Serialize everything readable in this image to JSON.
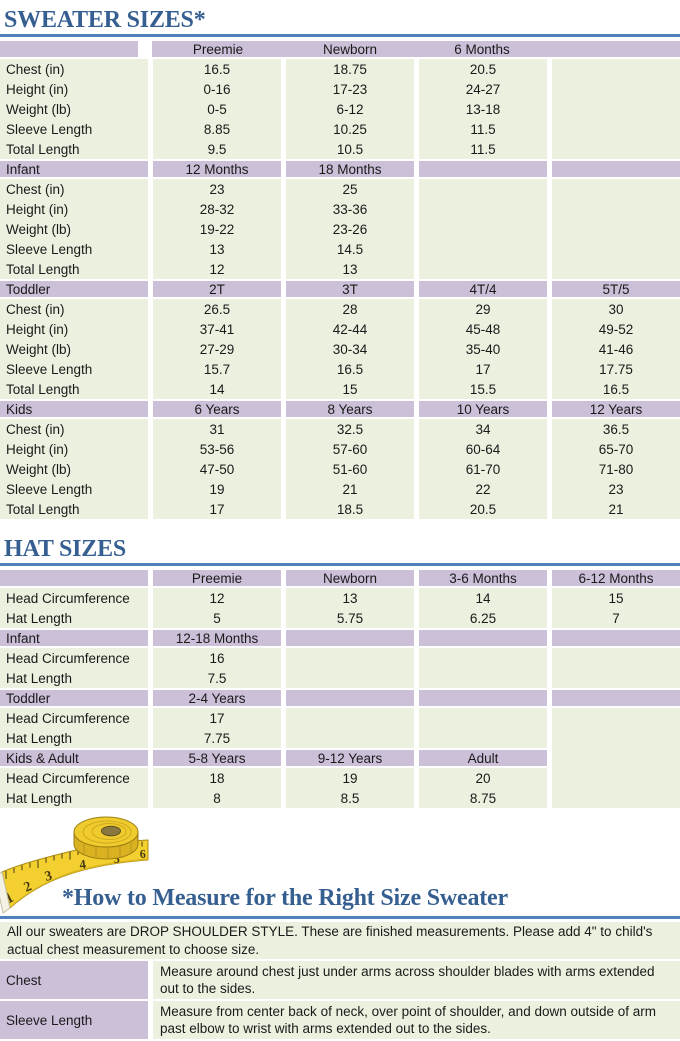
{
  "headings": {
    "sweater": "SWEATER SIZES*",
    "hat": "HAT SIZES",
    "measure": "*How to Measure for the Right Size Sweater"
  },
  "colors": {
    "heading_blue": "#355F91",
    "rule_blue": "#4F81BD",
    "header_purple": "#CCC0D9",
    "body_green": "#EBF1DE"
  },
  "sweater_table": {
    "first_header_solid": true,
    "sections": [
      {
        "header": [
          "",
          "Preemie",
          "Newborn",
          "6 Months",
          ""
        ],
        "rows": [
          [
            "Chest (in)",
            "16.5",
            "18.75",
            "20.5",
            ""
          ],
          [
            "Height (in)",
            "0-16",
            "17-23",
            "24-27",
            ""
          ],
          [
            "Weight (lb)",
            "0-5",
            "6-12",
            "13-18",
            ""
          ],
          [
            "Sleeve Length",
            "8.85",
            "10.25",
            "11.5",
            ""
          ],
          [
            "Total Length",
            "9.5",
            "10.5",
            "11.5",
            ""
          ]
        ]
      },
      {
        "header": [
          "Infant",
          "12 Months",
          "18 Months",
          "",
          ""
        ],
        "rows": [
          [
            "Chest (in)",
            "23",
            "25",
            "",
            ""
          ],
          [
            "Height (in)",
            "28-32",
            "33-36",
            "",
            ""
          ],
          [
            "Weight (lb)",
            "19-22",
            "23-26",
            "",
            ""
          ],
          [
            "Sleeve Length",
            "13",
            "14.5",
            "",
            ""
          ],
          [
            "Total Length",
            "12",
            "13",
            "",
            ""
          ]
        ]
      },
      {
        "header": [
          "Toddler",
          "2T",
          "3T",
          "4T/4",
          "5T/5"
        ],
        "rows": [
          [
            "Chest (in)",
            "26.5",
            "28",
            "29",
            "30"
          ],
          [
            "Height (in)",
            "37-41",
            "42-44",
            "45-48",
            "49-52"
          ],
          [
            "Weight (lb)",
            "27-29",
            "30-34",
            "35-40",
            "41-46"
          ],
          [
            "Sleeve Length",
            "15.7",
            "16.5",
            "17",
            "17.75"
          ],
          [
            "Total Length",
            "14",
            "15",
            "15.5",
            "16.5"
          ]
        ]
      },
      {
        "header": [
          "Kids",
          "6 Years",
          "8 Years",
          "10 Years",
          "12 Years"
        ],
        "rows": [
          [
            "Chest (in)",
            "31",
            "32.5",
            "34",
            "36.5"
          ],
          [
            "Height (in)",
            "53-56",
            "57-60",
            "60-64",
            "65-70"
          ],
          [
            "Weight (lb)",
            "47-50",
            "51-60",
            "61-70",
            "71-80"
          ],
          [
            "Sleeve Length",
            "19",
            "21",
            "22",
            "23"
          ],
          [
            "Total Length",
            "17",
            "18.5",
            "20.5",
            "21"
          ]
        ]
      }
    ]
  },
  "hat_table": {
    "first_header_solid": false,
    "sections": [
      {
        "header": [
          "",
          "Preemie",
          "Newborn",
          "3-6 Months",
          "6-12 Months"
        ],
        "rows": [
          [
            "Head Circumference",
            "12",
            "13",
            "14",
            "15"
          ],
          [
            "Hat Length",
            "5",
            "5.75",
            "6.25",
            "7"
          ]
        ]
      },
      {
        "header": [
          "Infant",
          "12-18 Months",
          "",
          "",
          ""
        ],
        "rows": [
          [
            "Head Circumference",
            "16",
            "",
            "",
            ""
          ],
          [
            "Hat Length",
            "7.5",
            "",
            "",
            ""
          ]
        ]
      },
      {
        "header": [
          "Toddler",
          "2-4 Years",
          "",
          "",
          ""
        ],
        "rows": [
          [
            "Head Circumference",
            "17",
            "",
            "",
            ""
          ],
          [
            "Hat Length",
            "7.75",
            "",
            "",
            ""
          ]
        ]
      },
      {
        "header": [
          "Kids & Adult",
          "5-8 Years",
          "9-12 Years",
          "Adult",
          ""
        ],
        "header_green_cols": [
          4
        ],
        "rows": [
          [
            "Head Circumference",
            "18",
            "19",
            "20",
            ""
          ],
          [
            "Hat Length",
            "8",
            "8.5",
            "8.75",
            ""
          ]
        ]
      }
    ]
  },
  "measure_notes": {
    "intro": "All our sweaters are DROP SHOULDER STYLE.  These are finished measurements.  Please add 4\" to child's actual chest measurement to choose size.",
    "rows": [
      {
        "label": "Chest",
        "text": "Measure around chest just under arms across shoulder blades with arms extended out to the sides."
      },
      {
        "label": "Sleeve Length",
        "text": "Measure from center back of neck, over point of shoulder, and down outside of arm past elbow to wrist with arms extended out to the sides."
      }
    ]
  },
  "tape_measure": {
    "numbers": [
      "1",
      "2",
      "3",
      "4",
      "5",
      "6"
    ]
  }
}
